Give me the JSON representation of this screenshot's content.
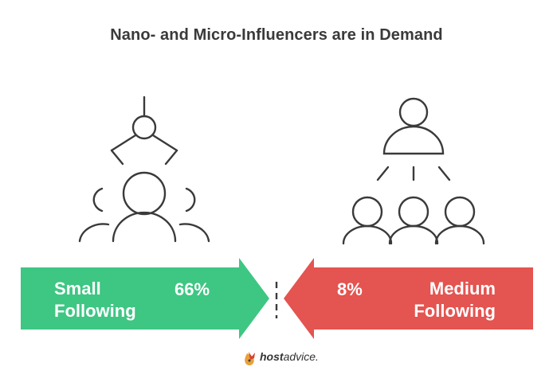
{
  "title": "Nano- and Micro-Influencers are in Demand",
  "left": {
    "label_line1": "Small",
    "label_line2": "Following",
    "percent": "66%",
    "color": "#3ec683"
  },
  "right": {
    "label_line1": "Medium",
    "label_line2": "Following",
    "percent": "8%",
    "color": "#e45450"
  },
  "icons": {
    "left": "influencer-network-icon",
    "right": "audience-hierarchy-icon"
  },
  "logo": {
    "brand_bold": "host",
    "brand_regular": "advice."
  }
}
